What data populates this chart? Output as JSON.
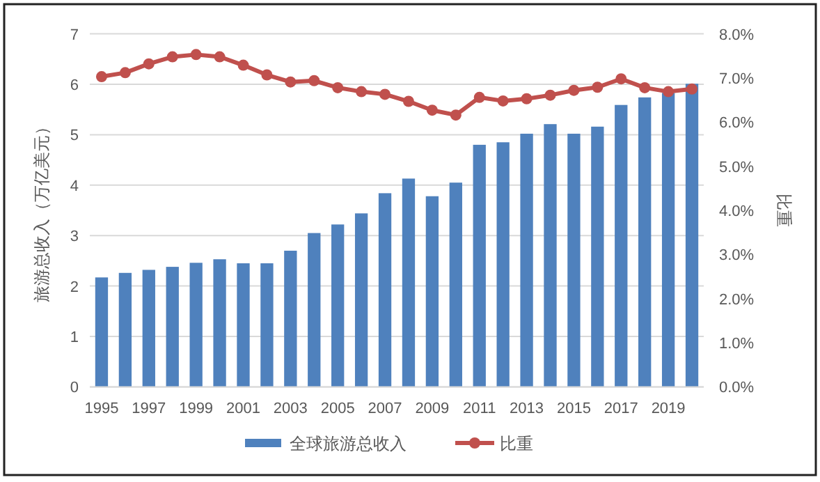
{
  "chart_data": {
    "type": "bar",
    "ylabel": "旅游总收入（万亿美元）",
    "y2label": "比重",
    "categories": [
      "1995",
      null,
      "1997",
      null,
      "1999",
      null,
      "2001",
      null,
      "2003",
      null,
      "2005",
      null,
      "2007",
      null,
      "2009",
      null,
      "2011",
      null,
      "2013",
      null,
      "2015",
      null,
      "2017",
      null,
      "2019",
      null
    ],
    "series": [
      {
        "name": "全球旅游总收入",
        "color": "#4f81bd",
        "values": [
          2.17,
          2.26,
          2.32,
          2.38,
          2.46,
          2.53,
          2.45,
          2.45,
          2.7,
          3.05,
          3.22,
          3.44,
          3.84,
          4.13,
          3.78,
          4.05,
          4.8,
          4.85,
          5.02,
          5.21,
          5.02,
          5.16,
          5.59,
          5.74,
          5.83,
          6.01
        ]
      },
      {
        "name": "比重",
        "type": "line",
        "axis": "y2",
        "marker": "circle",
        "color": "#c0504d",
        "values": [
          7.03,
          7.12,
          7.32,
          7.48,
          7.53,
          7.48,
          7.29,
          7.07,
          6.91,
          6.94,
          6.78,
          6.69,
          6.63,
          6.47,
          6.27,
          6.16,
          6.56,
          6.48,
          6.53,
          6.61,
          6.72,
          6.79,
          6.98,
          6.78,
          6.69,
          6.75
        ]
      }
    ],
    "ylim": [
      0,
      7
    ],
    "yticks": [
      0,
      1,
      2,
      3,
      4,
      5,
      6,
      7
    ],
    "y2lim": [
      0,
      8
    ],
    "y2ticks": [
      {
        "value": 0,
        "label": "0.0%"
      },
      {
        "value": 1,
        "label": "1.0%"
      },
      {
        "value": 2,
        "label": "2.0%"
      },
      {
        "value": 3,
        "label": "3.0%"
      },
      {
        "value": 4,
        "label": "4.0%"
      },
      {
        "value": 5,
        "label": "5.0%"
      },
      {
        "value": 6,
        "label": "6.0%"
      },
      {
        "value": 7,
        "label": "7.0%"
      },
      {
        "value": 8,
        "label": "8.0%"
      }
    ],
    "grid": "y",
    "legend": "bottom"
  }
}
